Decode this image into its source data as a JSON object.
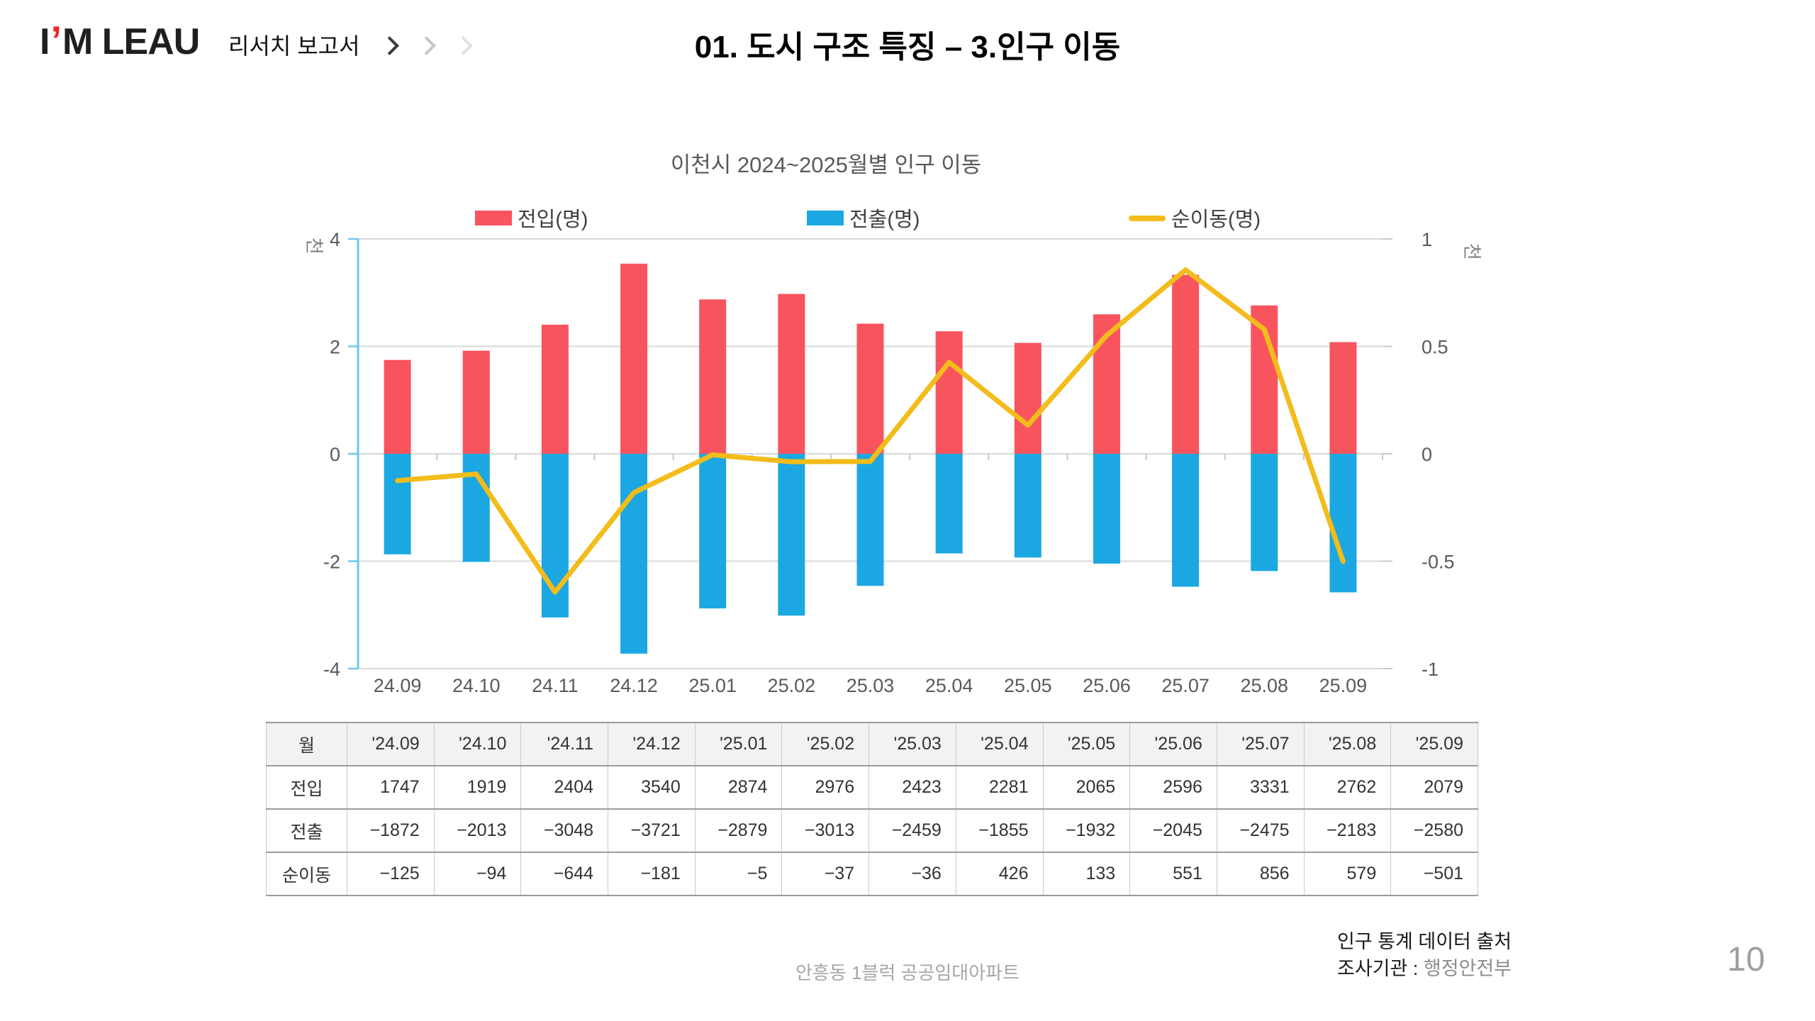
{
  "header": {
    "logo": {
      "left": "I",
      "mark": "’",
      "right": "M LEAU",
      "mark_color": "#E8282B"
    },
    "breadcrumb": {
      "label": "리서치 보고서"
    },
    "title": "01. 도시 구조 특징 – 3.인구 이동"
  },
  "chart": {
    "title": "이천시 2024~2025월별 인구 이동",
    "legend": [
      {
        "label": "전입(명)",
        "color": "#F8545E",
        "type": "bar"
      },
      {
        "label": "전출(명)",
        "color": "#1BA7E1",
        "type": "bar"
      },
      {
        "label": "순이동(명)",
        "color": "#F2BC1B",
        "type": "line"
      }
    ],
    "left_axis": {
      "unit": "천",
      "ticks": [
        "4",
        "2",
        "0",
        "-2",
        "-4"
      ]
    },
    "right_axis": {
      "unit": "천",
      "ticks": [
        "1",
        "0.5",
        "0",
        "-0.5",
        "-1"
      ]
    },
    "colors": {
      "axis_line": "#6BC8ED",
      "gridline": "#D9D9D9",
      "tick": "#C9C9C9",
      "tick_label": "#595959"
    }
  },
  "chart_data": {
    "type": "bar+line",
    "title": "이천시 2024~2025월별 인구 이동",
    "categories": [
      "24.09",
      "24.10",
      "24.11",
      "24.12",
      "25.01",
      "25.02",
      "25.03",
      "25.04",
      "25.05",
      "25.06",
      "25.07",
      "25.08",
      "25.09"
    ],
    "series": [
      {
        "name": "전입(명)",
        "type": "bar",
        "axis": "left",
        "color": "#F8545E",
        "values": [
          1747,
          1919,
          2404,
          3540,
          2874,
          2976,
          2423,
          2281,
          2065,
          2596,
          3331,
          2762,
          2079
        ]
      },
      {
        "name": "전출(명)",
        "type": "bar",
        "axis": "left",
        "color": "#1BA7E1",
        "values": [
          -1872,
          -2013,
          -3048,
          -3721,
          -2879,
          -3013,
          -2459,
          -1855,
          -1932,
          -2045,
          -2475,
          -2183,
          -2580
        ]
      },
      {
        "name": "순이동(명)",
        "type": "line",
        "axis": "right",
        "color": "#F2BC1B",
        "values": [
          -125,
          -94,
          -644,
          -181,
          -5,
          -37,
          -36,
          426,
          133,
          551,
          856,
          579,
          -501
        ]
      }
    ],
    "left_ylim": [
      -4000,
      4000
    ],
    "right_ylim": [
      -1000,
      1000
    ],
    "axis_unit": "천",
    "grid": true,
    "legend_position": "top"
  },
  "table": {
    "header": [
      "월",
      "'24.09",
      "'24.10",
      "'24.11",
      "'24.12",
      "'25.01",
      "'25.02",
      "'25.03",
      "'25.04",
      "'25.05",
      "'25.06",
      "'25.07",
      "'25.08",
      "'25.09"
    ],
    "rows": [
      {
        "label": "전입",
        "values": [
          "1747",
          "1919",
          "2404",
          "3540",
          "2874",
          "2976",
          "2423",
          "2281",
          "2065",
          "2596",
          "3331",
          "2762",
          "2079"
        ]
      },
      {
        "label": "전출",
        "values": [
          "−1872",
          "−2013",
          "−3048",
          "−3721",
          "−2879",
          "−3013",
          "−2459",
          "−1855",
          "−1932",
          "−2045",
          "−2475",
          "−2183",
          "−2580"
        ]
      },
      {
        "label": "순이동",
        "values": [
          "−125",
          "−94",
          "−644",
          "−181",
          "−5",
          "−37",
          "−36",
          "426",
          "133",
          "551",
          "856",
          "579",
          "−501"
        ]
      }
    ]
  },
  "footer": {
    "center": "안흥동 1블럭 공공임대아파트",
    "source_line1": "인구 통계 데이터 출처",
    "source_line2_label": "조사기관 : ",
    "source_line2_value": "행정안전부",
    "page": "10"
  }
}
